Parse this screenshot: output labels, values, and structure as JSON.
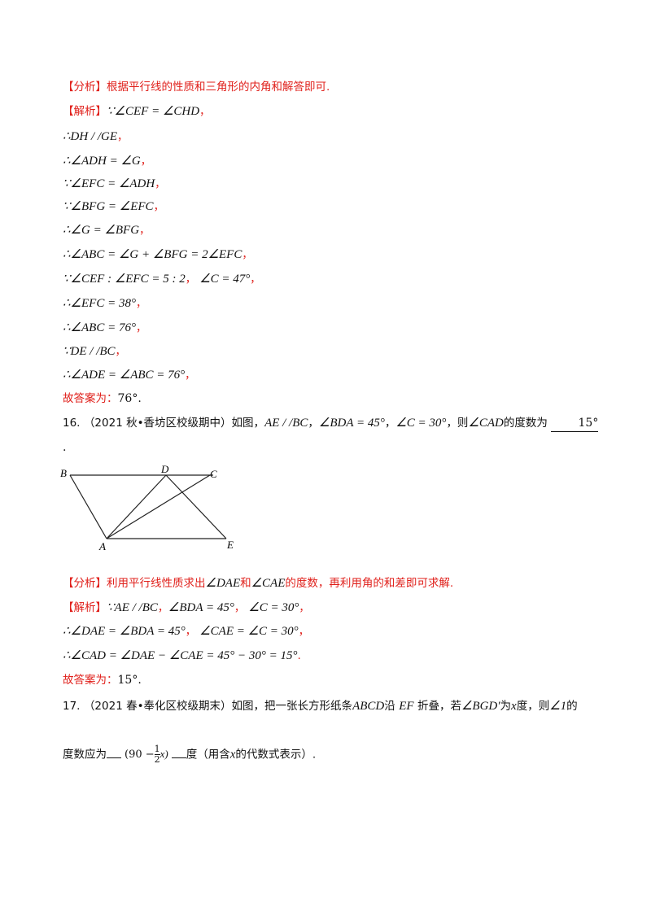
{
  "q15": {
    "analysis_tag": "【分析】",
    "analysis_text": "根据平行线的性质和三角形的内角和解答即可.",
    "solution_tag": "【解析】",
    "steps": [
      "∵∠CEF = ∠CHD",
      "∴DH / /GE",
      "∴∠ADH = ∠G",
      "∵∠EFC = ∠ADH",
      "∵∠BFG = ∠EFC",
      "∴∠G = ∠BFG",
      "∴∠ABC = ∠G + ∠BFG = 2∠EFC",
      "∵∠CEF : ∠EFC = 5 : 2",
      "∴∠EFC = 38°",
      "∴∠ABC = 76°",
      "∵DE / /BC",
      "∴∠ADE = ∠ABC = 76°"
    ],
    "step8_extra": "∠C = 47°",
    "comma": "，",
    "answer_label": "故答案为：",
    "answer_value": "76°."
  },
  "q16": {
    "number": "16.",
    "source": "（2021 秋•香坊区校级期中）如图，",
    "cond1": "AE / /BC",
    "cond2": "∠BDA = 45°",
    "cond3": "∠C = 30°",
    "ask_prefix": "，则",
    "ask_angle": "∠CAD",
    "ask_suffix": "的度数为",
    "blank_answer": "15°",
    "period": ".",
    "figure_labels": {
      "B": "B",
      "D": "D",
      "C": "C",
      "A": "A",
      "E": "E"
    },
    "analysis_tag": "【分析】",
    "analysis_a": "利用平行线性质求出",
    "analysis_angle1": "∠DAE",
    "analysis_and": "和",
    "analysis_angle2": "∠CAE",
    "analysis_b": "的度数，再利用角的和差即可求解.",
    "solution_tag": "【解析】",
    "sol1_a": "∵AE / /BC",
    "sol1_b": "∠BDA = 45°",
    "sol1_c": "∠C = 30°",
    "sol2_a": "∴∠DAE = ∠BDA = 45°",
    "sol2_b": "∠CAE = ∠C = 30°",
    "sol3": "∴∠CAD = ∠DAE − ∠CAE = 45° − 30° = 15°",
    "answer_label": "故答案为：",
    "answer_value": "15°."
  },
  "q17": {
    "number": "17.",
    "source": "（2021 春•奉化区校级期末）如图，把一张长方形纸条",
    "abcd": "ABCD",
    "along": "沿",
    "ef": "EF",
    "fold": "折叠，若",
    "angle": "∠BGD′",
    "is": "为",
    "x": "x",
    "deg_then": "度，则",
    "angle1": "∠1",
    "of": "的",
    "line2_a": "度数应为",
    "ans_left": "(90 −",
    "ans_num": "1",
    "ans_den": "2",
    "ans_right": "x)",
    "line2_b": "度（用含",
    "line2_x": "x",
    "line2_c": "的代数式表示）."
  }
}
